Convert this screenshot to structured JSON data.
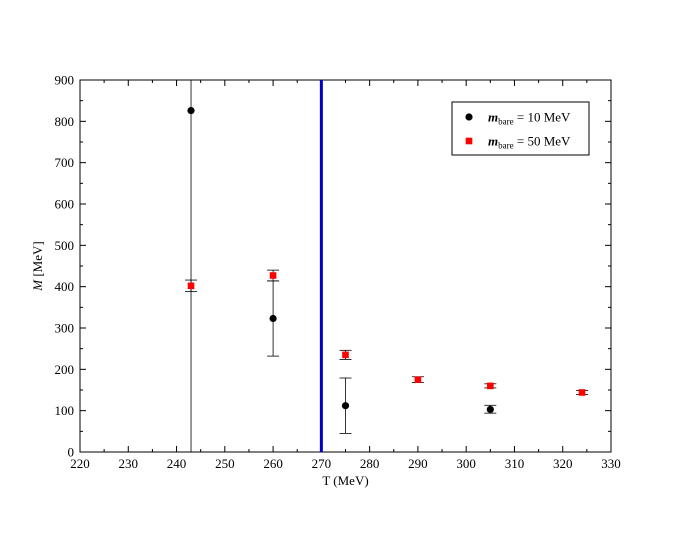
{
  "chart_data": {
    "type": "scatter",
    "title": "",
    "xlabel": "T (MeV)",
    "ylabel_italic": "M",
    "ylabel_rest": " [MeV]",
    "xlim": [
      220,
      330
    ],
    "ylim": [
      0,
      900
    ],
    "x_ticks": [
      220,
      230,
      240,
      250,
      260,
      270,
      280,
      290,
      300,
      310,
      320,
      330
    ],
    "y_ticks": [
      0,
      100,
      200,
      300,
      400,
      500,
      600,
      700,
      800,
      900
    ],
    "grid": false,
    "legend_position": "top-right",
    "vertical_line": {
      "x": 270,
      "color": "#0000cc"
    },
    "series": [
      {
        "name": "m_bare = 10 MeV",
        "legend_symbol": "m",
        "legend_subscript": "bare",
        "legend_rest": " = 10 MeV",
        "marker": "circle",
        "color": "#000000",
        "errbar_color": "#000000",
        "points": [
          {
            "x": 243,
            "y": 826,
            "ylo": 0,
            "yhi": 900
          },
          {
            "x": 260,
            "y": 323,
            "ylo": 232,
            "yhi": 414
          },
          {
            "x": 275,
            "y": 112,
            "ylo": 45,
            "yhi": 179
          },
          {
            "x": 305,
            "y": 103,
            "ylo": 94,
            "yhi": 113
          }
        ]
      },
      {
        "name": "m_bare = 50 MeV",
        "legend_symbol": "m",
        "legend_subscript": "bare",
        "legend_rest": " = 50 MeV",
        "marker": "square",
        "color": "#ff0000",
        "errbar_color": "#000000",
        "points": [
          {
            "x": 243,
            "y": 402,
            "ylo": 388,
            "yhi": 416
          },
          {
            "x": 260,
            "y": 427,
            "ylo": 414,
            "yhi": 440
          },
          {
            "x": 275,
            "y": 235,
            "ylo": 224,
            "yhi": 246
          },
          {
            "x": 290,
            "y": 175,
            "ylo": 168,
            "yhi": 182
          },
          {
            "x": 305,
            "y": 160,
            "ylo": 155,
            "yhi": 165
          },
          {
            "x": 324,
            "y": 144,
            "ylo": 139,
            "yhi": 149
          }
        ]
      }
    ]
  }
}
